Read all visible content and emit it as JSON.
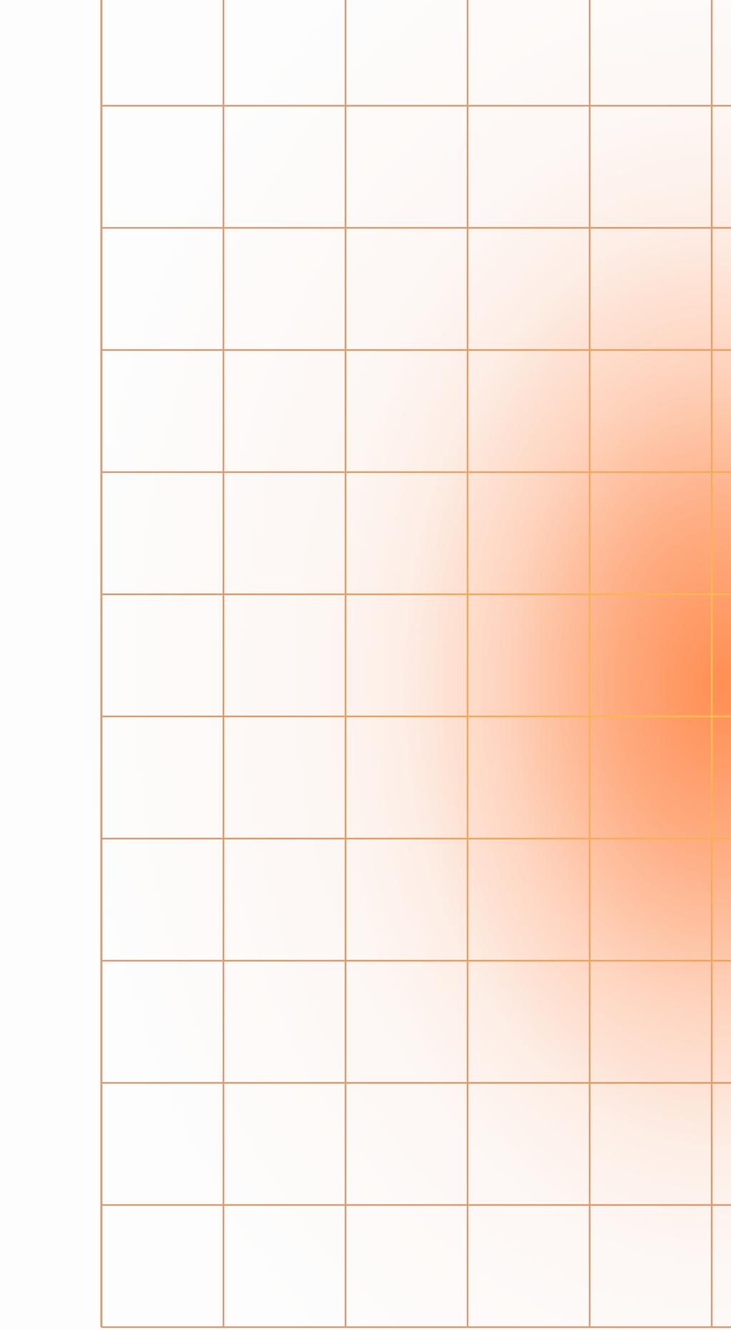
{
  "background": {
    "base_color": "#fdfdfd",
    "glow_color": "#ff8c50",
    "grid_line_color": "#d99c6c",
    "grid_line_highlight_color": "#ffb84c",
    "grid_columns": 6,
    "grid_rows": 10
  }
}
